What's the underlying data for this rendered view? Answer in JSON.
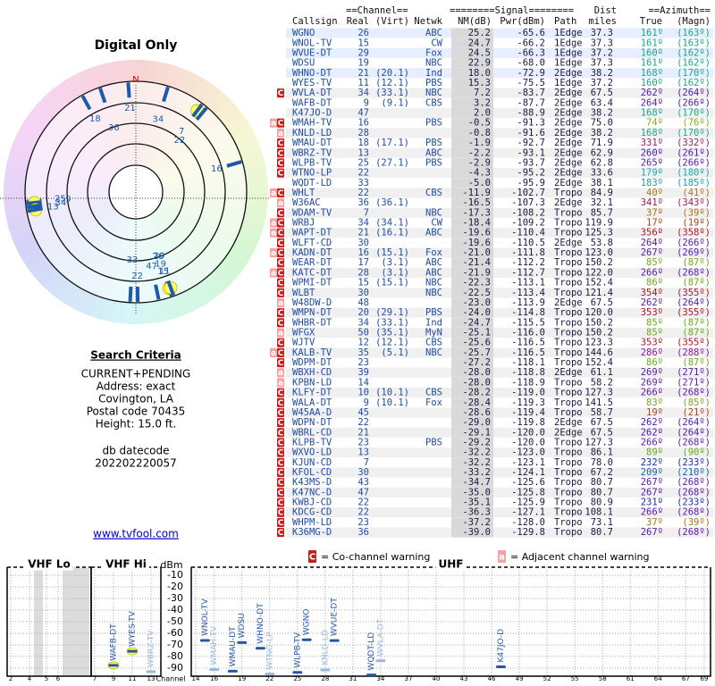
{
  "left": {
    "title": "Digital Only",
    "compass": "TrueNorth",
    "north": "N",
    "markers": [
      {
        "label": "21",
        "az": 356
      },
      {
        "label": "34",
        "az": 17
      },
      {
        "label": "36",
        "az": 341
      },
      {
        "label": "18",
        "az": 331
      },
      {
        "label": "7",
        "az": 37,
        "highlight": true
      },
      {
        "label": "22",
        "az": 40
      },
      {
        "label": "16",
        "az": 74
      },
      {
        "label": "25",
        "az": 265
      },
      {
        "label": "9",
        "az": 264,
        "highlight": true
      },
      {
        "label": "13",
        "az": 260,
        "highlight": true
      },
      {
        "label": "34",
        "az": 262
      },
      {
        "label": "26",
        "az": 161
      },
      {
        "label": "15",
        "az": 161
      },
      {
        "label": "47",
        "az": 168
      },
      {
        "label": "29",
        "az": 160
      },
      {
        "label": "22",
        "az": 179
      },
      {
        "label": "19",
        "az": 161,
        "highlight": true
      },
      {
        "label": "33",
        "az": 183
      },
      {
        "label": "11",
        "az": 160,
        "highlight": true
      }
    ],
    "criteria_title": "Search Criteria",
    "criteria": [
      "CURRENT+PENDING",
      "Address: exact",
      "Covington, LA",
      "Postal code 70435",
      "Height: 15.0 ft."
    ],
    "datecode_label": "db datecode",
    "datecode": "202202220057",
    "link": "www.tvfool.com"
  },
  "table": {
    "group_headers": [
      "==Channel==",
      "========Signal========",
      "Dist",
      "==Azimuth=="
    ],
    "headers": [
      "Callsign",
      "Real",
      "(Virt)",
      "Netwk",
      "NM(dB)",
      "Pwr(dBm)",
      "Path",
      "miles",
      "True",
      "(Magn)"
    ],
    "rows": [
      {
        "flags": [],
        "cells": [
          "WGNO",
          "26",
          null,
          "ABC",
          "25.2",
          "-65.6",
          "1Edge",
          "37.3",
          "161º",
          "(163º)"
        ]
      },
      {
        "flags": [],
        "cells": [
          "WNOL-TV",
          "15",
          null,
          "CW",
          "24.7",
          "-66.2",
          "1Edge",
          "37.3",
          "161º",
          "(163º)"
        ]
      },
      {
        "flags": [],
        "cells": [
          "WVUE-DT",
          "29",
          null,
          "Fox",
          "24.5",
          "-66.3",
          "1Edge",
          "37.2",
          "160º",
          "(162º)"
        ]
      },
      {
        "flags": [],
        "cells": [
          "WDSU",
          "19",
          null,
          "NBC",
          "22.9",
          "-68.0",
          "1Edge",
          "37.3",
          "161º",
          "(162º)"
        ]
      },
      {
        "flags": [],
        "cells": [
          "WHNO-DT",
          "21",
          "(20.1)",
          "Ind",
          "18.0",
          "-72.9",
          "2Edge",
          "38.2",
          "168º",
          "(170º)"
        ]
      },
      {
        "flags": [],
        "cells": [
          "WYES-TV",
          "11",
          "(12.1)",
          "PBS",
          "15.3",
          "-75.5",
          "1Edge",
          "37.2",
          "160º",
          "(162º)"
        ]
      },
      {
        "flags": [
          "C"
        ],
        "cells": [
          "WVLA-DT",
          "34",
          "(33.1)",
          "NBC",
          "7.2",
          "-83.7",
          "2Edge",
          "67.5",
          "262º",
          "(264º)"
        ]
      },
      {
        "flags": [],
        "cells": [
          "WAFB-DT",
          "9",
          "(9.1)",
          "CBS",
          "3.2",
          "-87.7",
          "2Edge",
          "63.4",
          "264º",
          "(266º)"
        ]
      },
      {
        "flags": [],
        "cells": [
          "K47JO-D",
          "47",
          null,
          null,
          "2.0",
          "-88.9",
          "2Edge",
          "38.2",
          "168º",
          "(170º)"
        ]
      },
      {
        "flags": [
          "a",
          "C"
        ],
        "cells": [
          "WMAH-TV",
          "16",
          null,
          "PBS",
          "-0.5",
          "-91.3",
          "2Edge",
          "75.0",
          "74º",
          "(76º)"
        ]
      },
      {
        "flags": [
          "a"
        ],
        "cells": [
          "KNLD-LD",
          "28",
          null,
          null,
          "-0.8",
          "-91.6",
          "2Edge",
          "38.2",
          "168º",
          "(170º)"
        ]
      },
      {
        "flags": [
          "C"
        ],
        "cells": [
          "WMAU-DT",
          "18",
          "(17.1)",
          "PBS",
          "-1.9",
          "-92.7",
          "2Edge",
          "71.9",
          "331º",
          "(332º)"
        ]
      },
      {
        "flags": [
          "C"
        ],
        "cells": [
          "WBRZ-TV",
          "13",
          null,
          "ABC",
          "-2.2",
          "-93.1",
          "2Edge",
          "62.9",
          "260º",
          "(261º)"
        ]
      },
      {
        "flags": [
          "C"
        ],
        "cells": [
          "WLPB-TV",
          "25",
          "(27.1)",
          "PBS",
          "-2.9",
          "-93.7",
          "2Edge",
          "62.8",
          "265º",
          "(266º)"
        ]
      },
      {
        "flags": [
          "C"
        ],
        "cells": [
          "WTNO-LP",
          "22",
          null,
          null,
          "-4.3",
          "-95.2",
          "2Edge",
          "33.6",
          "179º",
          "(180º)"
        ]
      },
      {
        "flags": [],
        "cells": [
          "WQDT-LD",
          "33",
          null,
          null,
          "-5.0",
          "-95.9",
          "2Edge",
          "38.1",
          "183º",
          "(185º)"
        ]
      },
      {
        "flags": [
          "a",
          "C"
        ],
        "cells": [
          "WHLT",
          "22",
          null,
          "CBS",
          "-11.9",
          "-102.7",
          "Tropo",
          "84.9",
          "40º",
          "(41º)"
        ]
      },
      {
        "flags": [
          "a"
        ],
        "cells": [
          "W36AC",
          "36",
          "(36.1)",
          null,
          "-16.5",
          "-107.3",
          "2Edge",
          "32.1",
          "341º",
          "(343º)"
        ]
      },
      {
        "flags": [
          "C"
        ],
        "cells": [
          "WDAM-TV",
          "7",
          null,
          "NBC",
          "-17.3",
          "-108.2",
          "Tropo",
          "85.7",
          "37º",
          "(39º)"
        ]
      },
      {
        "flags": [
          "a",
          "C"
        ],
        "cells": [
          "WRBJ",
          "34",
          "(34.1)",
          "CW",
          "-18.4",
          "-109.2",
          "Tropo",
          "119.9",
          "17º",
          "(19º)"
        ]
      },
      {
        "flags": [
          "a",
          "C"
        ],
        "cells": [
          "WAPT-DT",
          "21",
          "(16.1)",
          "ABC",
          "-19.6",
          "-110.4",
          "Tropo",
          "125.3",
          "356º",
          "(358º)"
        ]
      },
      {
        "flags": [
          "C"
        ],
        "cells": [
          "WLFT-CD",
          "30",
          null,
          null,
          "-19.6",
          "-110.5",
          "2Edge",
          "53.8",
          "264º",
          "(266º)"
        ]
      },
      {
        "flags": [
          "a",
          "C"
        ],
        "cells": [
          "KADN-DT",
          "16",
          "(15.1)",
          "Fox",
          "-21.0",
          "-111.8",
          "Tropo",
          "123.0",
          "267º",
          "(269º)"
        ]
      },
      {
        "flags": [
          "C"
        ],
        "cells": [
          "WEAR-DT",
          "17",
          "(3.1)",
          "ABC",
          "-21.4",
          "-112.2",
          "Tropo",
          "150.2",
          "85º",
          "(87º)"
        ]
      },
      {
        "flags": [
          "a",
          "C"
        ],
        "cells": [
          "KATC-DT",
          "28",
          "(3.1)",
          "ABC",
          "-21.9",
          "-112.7",
          "Tropo",
          "122.0",
          "266º",
          "(268º)"
        ]
      },
      {
        "flags": [
          "C"
        ],
        "cells": [
          "WPMI-DT",
          "15",
          "(15.1)",
          "NBC",
          "-22.3",
          "-113.1",
          "Tropo",
          "152.4",
          "86º",
          "(87º)"
        ]
      },
      {
        "flags": [
          "C"
        ],
        "cells": [
          "WLBT",
          "30",
          null,
          "NBC",
          "-22.5",
          "-113.4",
          "Tropo",
          "121.4",
          "354º",
          "(355º)"
        ]
      },
      {
        "flags": [
          "a"
        ],
        "cells": [
          "W48DW-D",
          "48",
          null,
          null,
          "-23.0",
          "-113.9",
          "2Edge",
          "67.5",
          "262º",
          "(264º)"
        ]
      },
      {
        "flags": [
          "C"
        ],
        "cells": [
          "WMPN-DT",
          "20",
          "(29.1)",
          "PBS",
          "-24.0",
          "-114.8",
          "Tropo",
          "120.0",
          "353º",
          "(355º)"
        ]
      },
      {
        "flags": [
          "C"
        ],
        "cells": [
          "WHBR-DT",
          "34",
          "(33.1)",
          "Ind",
          "-24.7",
          "-115.5",
          "Tropo",
          "150.2",
          "85º",
          "(87º)"
        ]
      },
      {
        "flags": [
          "a"
        ],
        "cells": [
          "WFGX",
          "50",
          "(35.1)",
          "MyN",
          "-25.1",
          "-116.0",
          "Tropo",
          "150.2",
          "85º",
          "(87º)"
        ]
      },
      {
        "flags": [
          "C"
        ],
        "cells": [
          "WJTV",
          "12",
          "(12.1)",
          "CBS",
          "-25.6",
          "-116.5",
          "Tropo",
          "123.3",
          "353º",
          "(355º)"
        ]
      },
      {
        "flags": [
          "a",
          "C"
        ],
        "cells": [
          "KALB-TV",
          "35",
          "(5.1)",
          "NBC",
          "-25.7",
          "-116.5",
          "Tropo",
          "144.6",
          "286º",
          "(288º)"
        ]
      },
      {
        "flags": [
          "C"
        ],
        "cells": [
          "WDPM-DT",
          "23",
          null,
          null,
          "-27.2",
          "-118.1",
          "Tropo",
          "152.4",
          "86º",
          "(87º)"
        ]
      },
      {
        "flags": [
          "a"
        ],
        "cells": [
          "WBXH-CD",
          "39",
          null,
          null,
          "-28.0",
          "-118.8",
          "2Edge",
          "61.1",
          "269º",
          "(271º)"
        ]
      },
      {
        "flags": [
          "a"
        ],
        "cells": [
          "KPBN-LD",
          "14",
          null,
          null,
          "-28.0",
          "-118.9",
          "Tropo",
          "58.2",
          "269º",
          "(271º)"
        ]
      },
      {
        "flags": [
          "C"
        ],
        "cells": [
          "KLFY-DT",
          "10",
          "(10.1)",
          "CBS",
          "-28.2",
          "-119.0",
          "Tropo",
          "127.3",
          "266º",
          "(268º)"
        ]
      },
      {
        "flags": [
          "C"
        ],
        "cells": [
          "WALA-DT",
          "9",
          "(10.1)",
          "Fox",
          "-28.4",
          "-119.3",
          "Tropo",
          "141.5",
          "83º",
          "(85º)"
        ]
      },
      {
        "flags": [
          "C"
        ],
        "cells": [
          "W45AA-D",
          "45",
          null,
          null,
          "-28.6",
          "-119.4",
          "Tropo",
          "58.7",
          "19º",
          "(21º)"
        ]
      },
      {
        "flags": [
          "C"
        ],
        "cells": [
          "WDPN-DT",
          "22",
          null,
          null,
          "-29.0",
          "-119.8",
          "2Edge",
          "67.5",
          "262º",
          "(264º)"
        ]
      },
      {
        "flags": [
          "C"
        ],
        "cells": [
          "WBRL-CD",
          "21",
          null,
          null,
          "-29.1",
          "-120.0",
          "2Edge",
          "67.5",
          "262º",
          "(264º)"
        ]
      },
      {
        "flags": [
          "C"
        ],
        "cells": [
          "KLPB-TV",
          "23",
          null,
          "PBS",
          "-29.2",
          "-120.0",
          "Tropo",
          "127.3",
          "266º",
          "(268º)"
        ]
      },
      {
        "flags": [
          "C"
        ],
        "cells": [
          "WXVO-LD",
          "13",
          null,
          null,
          "-32.2",
          "-123.0",
          "Tropo",
          "86.1",
          "89º",
          "(90º)"
        ]
      },
      {
        "flags": [
          "C"
        ],
        "cells": [
          "KJUN-CD",
          "7",
          null,
          null,
          "-32.2",
          "-123.1",
          "Tropo",
          "78.0",
          "232º",
          "(233º)"
        ]
      },
      {
        "flags": [
          "C"
        ],
        "cells": [
          "KFOL-CD",
          "30",
          null,
          null,
          "-33.2",
          "-124.1",
          "Tropo",
          "67.2",
          "209º",
          "(210º)"
        ]
      },
      {
        "flags": [
          "C"
        ],
        "cells": [
          "K43MS-D",
          "43",
          null,
          null,
          "-34.7",
          "-125.6",
          "Tropo",
          "80.7",
          "267º",
          "(268º)"
        ]
      },
      {
        "flags": [
          "C"
        ],
        "cells": [
          "K47NC-D",
          "47",
          null,
          null,
          "-35.0",
          "-125.8",
          "Tropo",
          "80.7",
          "267º",
          "(268º)"
        ]
      },
      {
        "flags": [
          "C"
        ],
        "cells": [
          "KWBJ-CD",
          "22",
          null,
          null,
          "-35.1",
          "-125.9",
          "Tropo",
          "80.9",
          "231º",
          "(233º)"
        ]
      },
      {
        "flags": [
          "C"
        ],
        "cells": [
          "KDCG-CD",
          "22",
          null,
          null,
          "-36.3",
          "-127.1",
          "Tropo",
          "108.1",
          "266º",
          "(268º)"
        ]
      },
      {
        "flags": [
          "C"
        ],
        "cells": [
          "WHPM-LD",
          "23",
          null,
          null,
          "-37.2",
          "-128.0",
          "Tropo",
          "73.1",
          "37º",
          "(39º)"
        ]
      },
      {
        "flags": [
          "C"
        ],
        "cells": [
          "K36MG-D",
          "36",
          null,
          null,
          "-39.0",
          "-129.8",
          "Tropo",
          "80.7",
          "267º",
          "(268º)"
        ]
      }
    ]
  },
  "legend": {
    "co_icon": "C",
    "co_text": "= Co-channel warning",
    "adj_icon": "a",
    "adj_text": "= Adjacent channel warning"
  },
  "spectrum": {
    "type": "spectrum",
    "ylabel": "dBm",
    "xlabel": "Channel",
    "ylim": [
      -97,
      -3
    ],
    "yticks": [
      -10,
      -20,
      -30,
      -40,
      -50,
      -60,
      -70,
      -80,
      -90
    ],
    "bands": [
      {
        "title": "VHF Lo",
        "xticks": [
          2,
          4,
          5,
          6
        ]
      },
      {
        "title": "VHF Hi",
        "xticks": [
          7,
          9,
          11,
          13
        ]
      },
      {
        "title": "UHF",
        "xlim": [
          14,
          69
        ],
        "xticks": [
          14,
          16,
          19,
          22,
          25,
          28,
          31,
          34,
          37,
          40,
          43,
          46,
          49,
          52,
          55,
          58,
          61,
          64,
          67,
          69
        ]
      }
    ],
    "stations": [
      {
        "name": "WAFB-DT",
        "channel": 9,
        "value": -87.7,
        "color": "#2457a8",
        "highlight": true
      },
      {
        "name": "WYES-TV",
        "channel": 11,
        "value": -75.5,
        "color": "#2457a8",
        "highlight": true
      },
      {
        "name": "WBRZ-TV",
        "channel": 13,
        "value": -93.1,
        "color": "#9bb6de"
      },
      {
        "name": "WNOL-TV",
        "channel": 15,
        "value": -66.2,
        "color": "#2457a8"
      },
      {
        "name": "WMAH-TV",
        "channel": 16,
        "value": -91.3,
        "color": "#9bb6de"
      },
      {
        "name": "WMAU-DT",
        "channel": 18,
        "value": -92.7,
        "color": "#2457a8"
      },
      {
        "name": "WDSU",
        "channel": 19,
        "value": -68.0,
        "color": "#2457a8"
      },
      {
        "name": "WHNO-DT",
        "channel": 21,
        "value": -72.9,
        "color": "#2457a8"
      },
      {
        "name": "WTNO-LP",
        "channel": 22,
        "value": -95.2,
        "color": "#9bb6de"
      },
      {
        "name": "WLPB-TV",
        "channel": 25,
        "value": -93.7,
        "color": "#2457a8"
      },
      {
        "name": "WGNO",
        "channel": 26,
        "value": -65.6,
        "color": "#2457a8"
      },
      {
        "name": "KNLD-LD",
        "channel": 28,
        "value": -91.6,
        "color": "#9bb6de"
      },
      {
        "name": "WVUE-DT",
        "channel": 29,
        "value": -66.3,
        "color": "#2457a8"
      },
      {
        "name": "WQDT-LD",
        "channel": 33,
        "value": -95.9,
        "color": "#2457a8"
      },
      {
        "name": "WVLA-DT",
        "channel": 34,
        "value": -83.7,
        "color": "#9bb6de"
      },
      {
        "name": "K47JO-D",
        "channel": 47,
        "value": -88.9,
        "color": "#2457a8"
      }
    ]
  }
}
